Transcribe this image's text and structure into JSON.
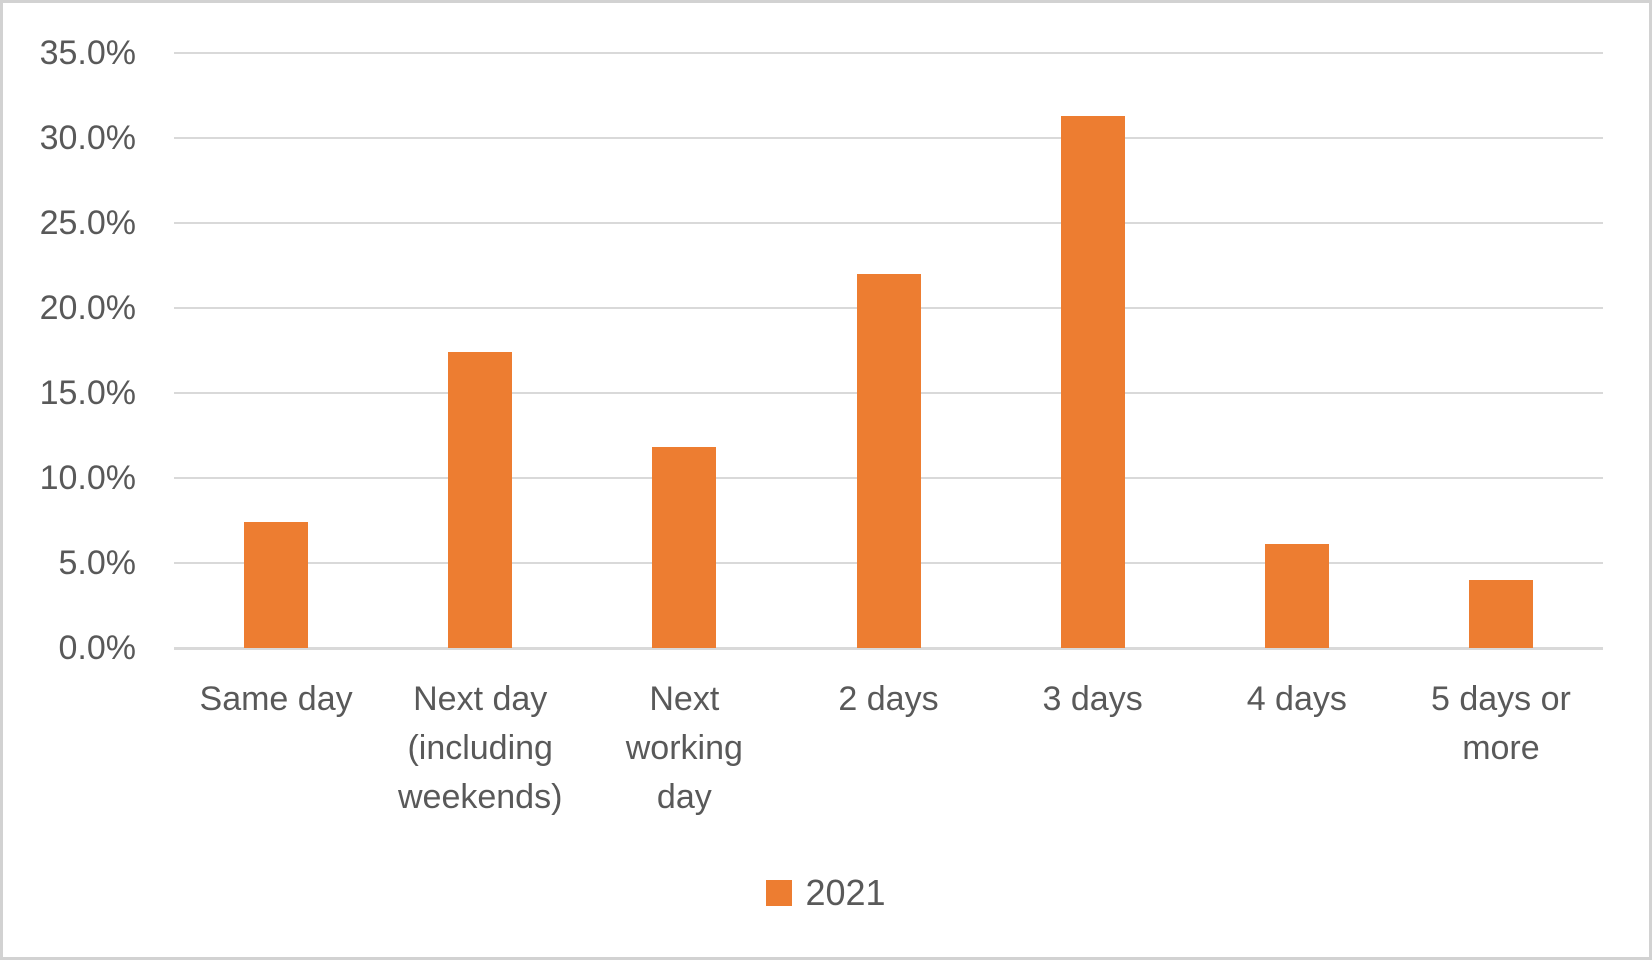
{
  "chart_data": {
    "type": "bar",
    "title": "",
    "xlabel": "",
    "ylabel": "",
    "categories": [
      "Same day",
      "Next day\n(including\nweekends)",
      "Next\nworking\nday",
      "2 days",
      "3 days",
      "4 days",
      "5 days or\nmore"
    ],
    "series": [
      {
        "name": "2021",
        "color": "#ED7D31",
        "values": [
          7.4,
          17.4,
          11.8,
          22.0,
          31.3,
          6.1,
          4.0
        ]
      }
    ],
    "value_unit": "%",
    "ylim": [
      0,
      35
    ],
    "y_ticks": [
      "0.0%",
      "5.0%",
      "10.0%",
      "15.0%",
      "20.0%",
      "25.0%",
      "30.0%",
      "35.0%"
    ],
    "grid": true,
    "legend_position": "bottom"
  },
  "colors": {
    "bar": "#ED7D31",
    "gridline": "#D9D9D9",
    "axis_text": "#595959",
    "background": "#FFFFFF",
    "border": "#D2D2D2"
  }
}
